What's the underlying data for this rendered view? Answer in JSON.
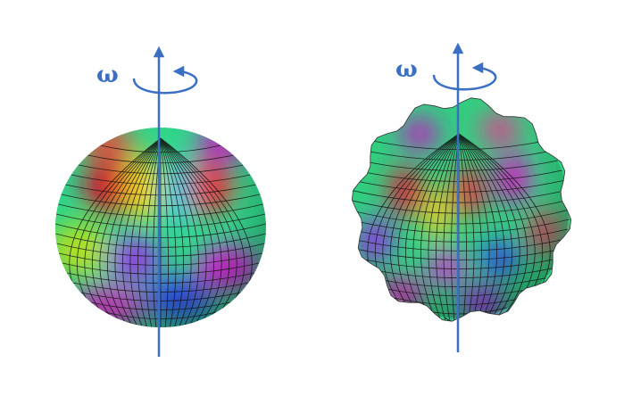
{
  "left": {
    "label": "ω"
  },
  "right": {
    "label": "ω"
  }
}
